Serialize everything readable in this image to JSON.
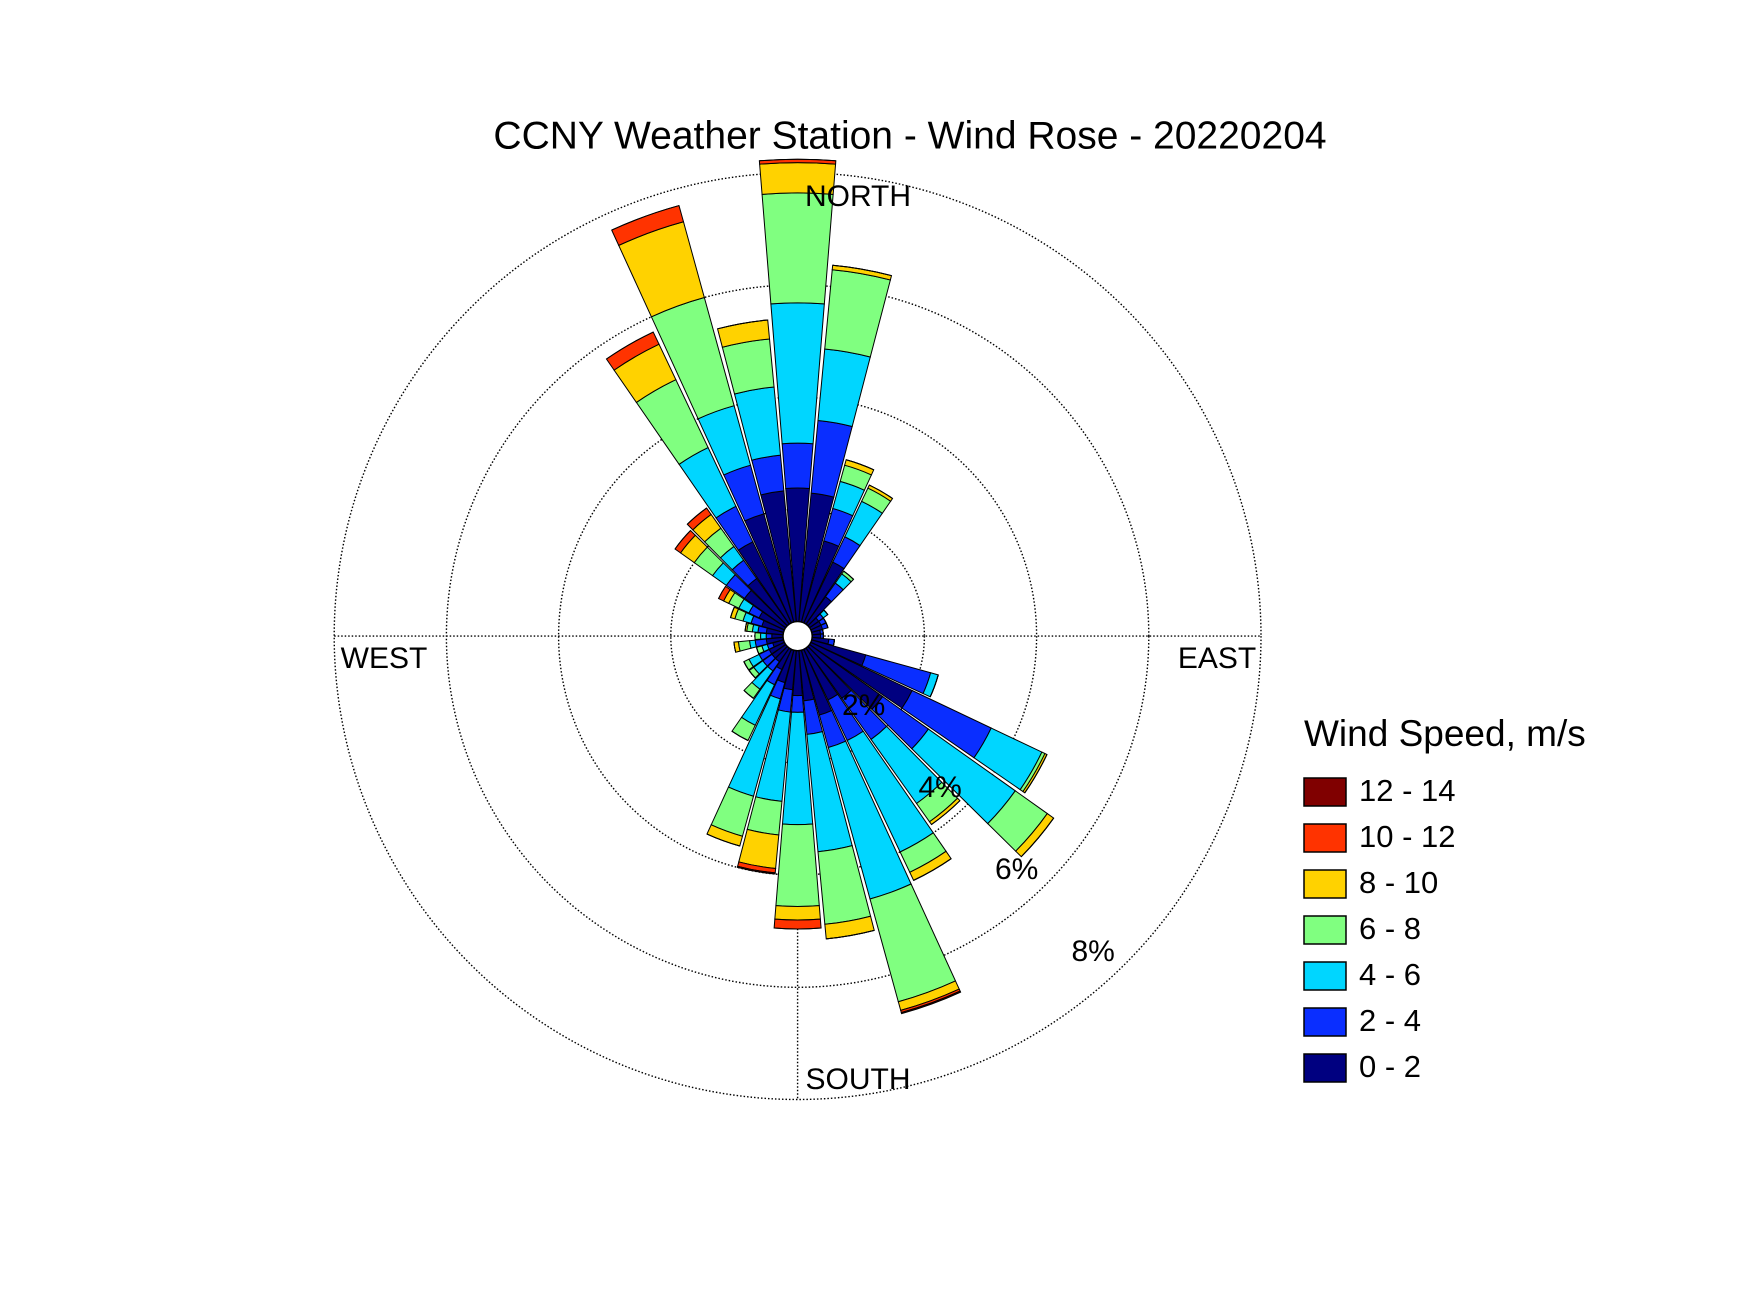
{
  "chart_data": {
    "type": "windrose",
    "title": "CCNY Weather Station - Wind Rose - 20220204",
    "direction_labels": {
      "north": "NORTH",
      "east": "EAST",
      "south": "SOUTH",
      "west": "WEST"
    },
    "legend_title": "Wind Speed, m/s",
    "rlim": [
      0,
      8
    ],
    "rticks": [
      {
        "value": 2,
        "label": "2%"
      },
      {
        "value": 4,
        "label": "4%"
      },
      {
        "value": 6,
        "label": "6%"
      },
      {
        "value": 8,
        "label": "8%"
      }
    ],
    "grid": true,
    "legend": "right",
    "series": [
      {
        "name": "0 - 2",
        "color": "#000080",
        "values": [
          2.38,
          2.3,
          1.5,
          1.2,
          0.6,
          0.2,
          0.2,
          0.2,
          0.15,
          0.15,
          0.3,
          1.0,
          2.0,
          1.6,
          1.1,
          1.0,
          1.2,
          0.9,
          0.8,
          0.7,
          0.6,
          0.4,
          0.3,
          0.3,
          0.3,
          0.2,
          0.3,
          0.2,
          0.3,
          0.4,
          0.5,
          0.9,
          1.0,
          1.6,
          2.0,
          2.34
        ]
      },
      {
        "name": "2 - 4",
        "color": "#0a2eff",
        "values": [
          0.8,
          1.3,
          0.6,
          0.5,
          0.3,
          0.1,
          0.1,
          0.1,
          0.05,
          0.05,
          0.1,
          1.2,
          1.56,
          1.0,
          0.9,
          0.8,
          0.6,
          0.6,
          0.3,
          0.4,
          0.3,
          0.3,
          0.2,
          0.2,
          0.2,
          0.1,
          0.2,
          0.1,
          0.15,
          0.2,
          0.2,
          0.4,
          0.4,
          0.7,
          0.9,
          0.64
        ]
      },
      {
        "name": "4 - 6",
        "color": "#00d6ff",
        "values": [
          2.5,
          1.28,
          0.5,
          0.7,
          0.2,
          0.1,
          0,
          0,
          0,
          0,
          0,
          0.14,
          1.0,
          1.9,
          1.4,
          2.2,
          2.8,
          2.1,
          2.0,
          1.6,
          1.8,
          0.8,
          0.4,
          0.2,
          0.2,
          0.1,
          0.1,
          0.1,
          0.1,
          0.15,
          0.2,
          0.3,
          0.3,
          1.16,
          1.1,
          1.22
        ]
      },
      {
        "name": "6 - 8",
        "color": "#80ff80",
        "values": [
          1.96,
          1.42,
          0.3,
          0.26,
          0.06,
          0,
          0,
          0,
          0,
          0,
          0,
          0,
          0.06,
          0.7,
          0.4,
          0.4,
          1.9,
          1.3,
          1.46,
          0.6,
          0.74,
          0.3,
          0.2,
          0.1,
          0.1,
          0.1,
          0.2,
          0.1,
          0.1,
          0.15,
          0.2,
          0.4,
          0.4,
          1.34,
          2.0,
          0.86
        ]
      },
      {
        "name": "8 - 10",
        "color": "#ffd200",
        "values": [
          0.54,
          0.08,
          0.1,
          0.06,
          0,
          0,
          0,
          0,
          0,
          0,
          0,
          0,
          0.04,
          0.14,
          0.06,
          0.16,
          0.16,
          0.26,
          0.24,
          0.6,
          0.18,
          0,
          0,
          0,
          0,
          0,
          0.08,
          0,
          0.03,
          0.08,
          0.1,
          0.3,
          0.3,
          0.7,
          1.4,
          0.34
        ]
      },
      {
        "name": "10 - 12",
        "color": "#ff3300",
        "values": [
          0.06,
          0,
          0,
          0,
          0,
          0,
          0,
          0,
          0,
          0,
          0,
          0,
          0,
          0,
          0,
          0,
          0.04,
          0,
          0.16,
          0.08,
          0,
          0,
          0,
          0,
          0,
          0,
          0,
          0,
          0,
          0,
          0.1,
          0.12,
          0.14,
          0.24,
          0.3,
          0
        ]
      },
      {
        "name": "12 - 14",
        "color": "#800000",
        "values": [
          0,
          0,
          0,
          0,
          0,
          0,
          0,
          0,
          0,
          0,
          0,
          0,
          0,
          0,
          0,
          0,
          0.02,
          0,
          0,
          0.02,
          0,
          0,
          0,
          0,
          0,
          0,
          0,
          0,
          0,
          0,
          0,
          0,
          0,
          0,
          0,
          0
        ]
      }
    ]
  }
}
